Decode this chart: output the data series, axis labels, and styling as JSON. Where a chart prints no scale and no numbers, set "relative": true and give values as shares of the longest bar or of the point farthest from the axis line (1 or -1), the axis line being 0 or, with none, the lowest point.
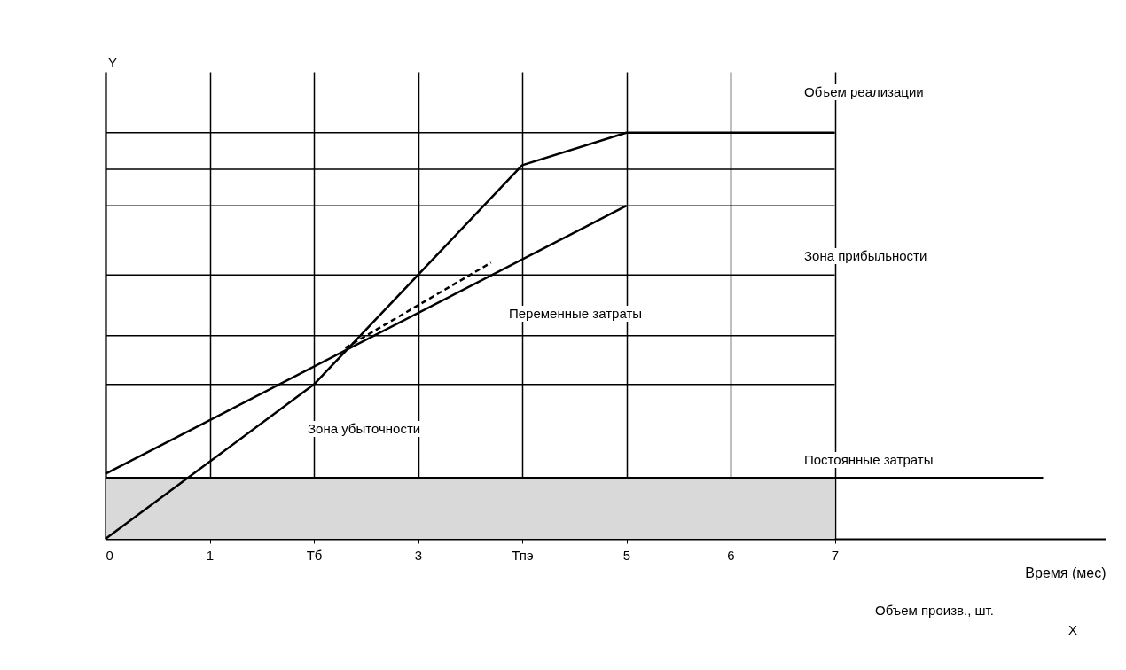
{
  "chart_data": {
    "type": "line",
    "relative": true,
    "xlabel": "Время (мес)",
    "xlim": [
      0,
      9.6
    ],
    "xticks": [
      0,
      1,
      {
        "value": 2,
        "label": "Тб"
      },
      3,
      {
        "value": 4,
        "label": "Тпэ"
      },
      5,
      6,
      7
    ],
    "grid": "x",
    "series": [
      {
        "type": "area",
        "color": "#d9d9d9",
        "x": [
          0,
          7
        ],
        "values": [
          0.15,
          0.15
        ]
      },
      {
        "color": "#000000",
        "x": [
          0,
          9
        ],
        "values": [
          0.15,
          0.15
        ]
      },
      {
        "color": "#000000",
        "x": [
          0,
          2,
          4,
          5,
          7
        ],
        "values": [
          0,
          0.38,
          0.92,
          1,
          1
        ]
      },
      {
        "color": "#000000",
        "x": [
          0,
          5
        ],
        "values": [
          0.16,
          0.82
        ]
      },
      {
        "color": "#000000",
        "line_style": "dashed",
        "x": [
          2.3,
          3.7
        ],
        "values": [
          0.47,
          0.68
        ]
      }
    ],
    "ref_lines": [
      {
        "axis": "y",
        "value": 1
      },
      {
        "axis": "y",
        "value": 0.91
      },
      {
        "axis": "y",
        "value": 0.82
      },
      {
        "axis": "y",
        "value": 0.65
      },
      {
        "axis": "y",
        "value": 0.5
      },
      {
        "axis": "y",
        "value": 0.38
      }
    ],
    "annotations": [
      "Объем реализации",
      "Зона прибыльности",
      "Переменные затраты",
      "Зона убыточности",
      "Постоянные затраты",
      "Объем произв., шт.",
      "X",
      "Y"
    ]
  }
}
